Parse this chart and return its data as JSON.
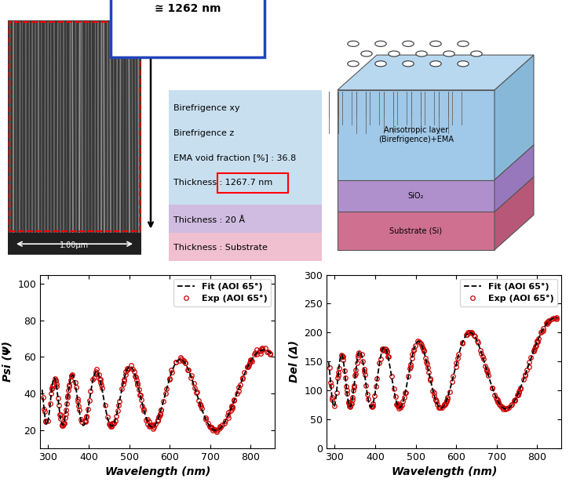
{
  "title_box_text": "≅ 1262 nm",
  "info_lines_blue": [
    "Birefrigence xy",
    "Birefrigence z",
    "EMA void fraction [%] : 36.8",
    "Thickness : 1267.7 nm"
  ],
  "info_line_purple": "Thickness : 20 Å",
  "info_line_pink": "Thickness : Substrate",
  "layer_labels": [
    "Anisotropic layer\n(Birefrigence)+EMA",
    "SiO₂",
    "Substrate (Si)"
  ],
  "layer_colors_front": [
    "#a0c8e8",
    "#b090cc",
    "#d07090"
  ],
  "layer_colors_top": [
    "#b8d8f0",
    "#c0a0d8",
    "#dc8098"
  ],
  "layer_colors_right": [
    "#88b8d8",
    "#9878bc",
    "#b85878"
  ],
  "info_bg_blue": "#c8dff0",
  "info_bg_purple": "#d0bce0",
  "info_bg_pink": "#f0c0d0",
  "psi_ylim": [
    10,
    105
  ],
  "psi_yticks": [
    20,
    40,
    60,
    80,
    100
  ],
  "del_ylim": [
    0,
    300
  ],
  "del_yticks": [
    0,
    50,
    100,
    150,
    200,
    250,
    300
  ],
  "xlim": [
    280,
    860
  ],
  "xticks": [
    300,
    400,
    500,
    600,
    700,
    800
  ],
  "xlabel": "Wavelength (nm)",
  "psi_ylabel": "Psi (Ψ)",
  "del_ylabel": "Del (Δ)",
  "fit_label": "Fit (AOI 65°)",
  "exp_label": "Exp (AOI 65°)",
  "fit_color": "#000000",
  "exp_color": "#cc0000",
  "sem_bg": "#383838",
  "sem_line_color": "#909090",
  "scalebar_bg": "#202020"
}
